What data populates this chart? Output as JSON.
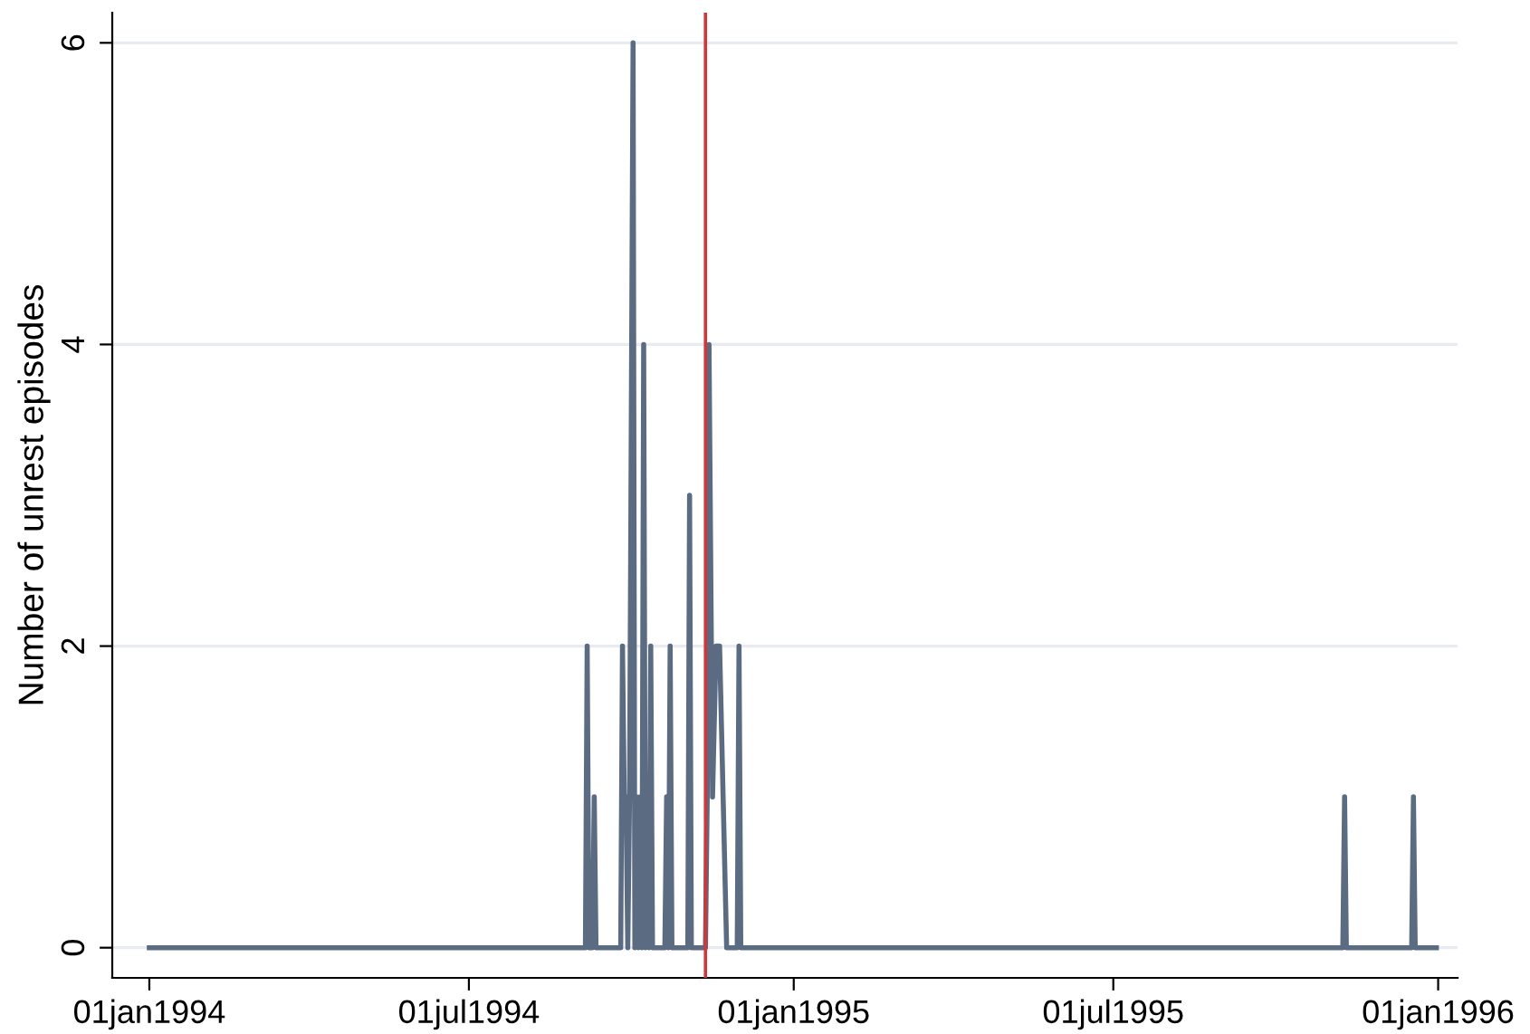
{
  "chart_data": {
    "type": "line",
    "ylabel": "Number of unrest episodes",
    "x": [
      "1994-01-01",
      "1994-09-05",
      "1994-09-06",
      "1994-09-07",
      "1994-09-09",
      "1994-09-10",
      "1994-09-11",
      "1994-09-25",
      "1994-09-26",
      "1994-09-27",
      "1994-09-28",
      "1994-09-29",
      "1994-09-30",
      "1994-10-02",
      "1994-10-03",
      "1994-10-04",
      "1994-10-05",
      "1994-10-06",
      "1994-10-07",
      "1994-10-08",
      "1994-10-09",
      "1994-10-10",
      "1994-10-11",
      "1994-10-12",
      "1994-10-13",
      "1994-10-20",
      "1994-10-21",
      "1994-10-22",
      "1994-10-23",
      "1994-10-24",
      "1994-11-02",
      "1994-11-03",
      "1994-11-04",
      "1994-11-12",
      "1994-11-13",
      "1994-11-14",
      "1994-11-16",
      "1994-11-18",
      "1994-11-20",
      "1994-11-22",
      "1994-11-24",
      "1994-11-30",
      "1994-12-01",
      "1994-12-02",
      "1995-11-08",
      "1995-11-09",
      "1995-11-10",
      "1995-12-17",
      "1995-12-18",
      "1995-12-19",
      "1995-12-31"
    ],
    "series": [
      {
        "color": "#5b6b82",
        "values": [
          0,
          0,
          2,
          0,
          0,
          1,
          0,
          0,
          2,
          1,
          1,
          0,
          1,
          6,
          0,
          1,
          0,
          1,
          0,
          4,
          0,
          1,
          0,
          2,
          0,
          0,
          1,
          0,
          2,
          0,
          0,
          3,
          0,
          0,
          1,
          4,
          1,
          2,
          2,
          1,
          0,
          0,
          2,
          0,
          0,
          1,
          0,
          0,
          1,
          0,
          0
        ]
      }
    ],
    "xlim": [
      "1993-12-11",
      "1996-01-12"
    ],
    "xticks": [
      {
        "value": "1994-01-01",
        "label": "01jan1994"
      },
      {
        "value": "1994-07-01",
        "label": "01jul1994"
      },
      {
        "value": "1995-01-01",
        "label": "01jan1995"
      },
      {
        "value": "1995-07-01",
        "label": "01jul1995"
      },
      {
        "value": "1996-01-01",
        "label": "01jan1996"
      }
    ],
    "ylim": [
      -0.2,
      6.2
    ],
    "yticks": [
      0,
      2,
      4,
      6
    ],
    "grid": "y",
    "legend": false,
    "marker": "none",
    "line_style": "solid",
    "ref_lines": [
      {
        "axis": "x",
        "value": "1994-11-12",
        "color": "#d0363a"
      }
    ]
  }
}
